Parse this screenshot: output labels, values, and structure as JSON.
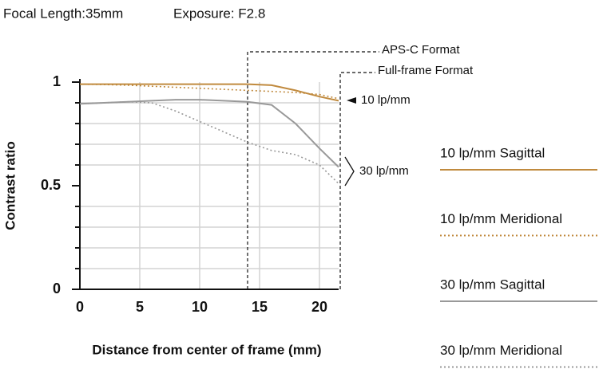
{
  "chart_data": {
    "type": "line",
    "title": "Focal Length:35mm",
    "subtitle": "Exposure: F2.8",
    "x_label": "Distance from center of frame (mm)",
    "y_label": "Contrast ratio",
    "x": [
      0,
      2,
      4,
      6,
      8,
      10,
      12,
      14,
      16,
      18,
      20,
      21.6
    ],
    "series": [
      {
        "name": "10 lp/mm Sagittal",
        "color": "#c08a3e",
        "dash": "solid",
        "values": [
          0.99,
          0.99,
          0.99,
          0.99,
          0.99,
          0.99,
          0.99,
          0.99,
          0.985,
          0.96,
          0.93,
          0.91
        ]
      },
      {
        "name": "10 lp/mm Meridional",
        "color": "#c08a3e",
        "dash": "dotted",
        "values": [
          0.99,
          0.988,
          0.985,
          0.98,
          0.975,
          0.97,
          0.965,
          0.96,
          0.955,
          0.95,
          0.94,
          0.92
        ]
      },
      {
        "name": "30 lp/mm Sagittal",
        "color": "#999999",
        "dash": "solid",
        "values": [
          0.895,
          0.9,
          0.905,
          0.91,
          0.915,
          0.915,
          0.91,
          0.905,
          0.89,
          0.8,
          0.68,
          0.59
        ]
      },
      {
        "name": "30 lp/mm Meridional",
        "color": "#999999",
        "dash": "dotted",
        "values": [
          0.895,
          0.9,
          0.905,
          0.9,
          0.86,
          0.81,
          0.76,
          0.71,
          0.67,
          0.65,
          0.6,
          0.51
        ]
      }
    ],
    "xlim": [
      0,
      21.6
    ],
    "ylim": [
      0,
      1
    ],
    "xticks": [
      0,
      5,
      10,
      15,
      20
    ],
    "yticks": [
      0,
      0.5,
      1
    ],
    "minor_yticks": [
      0.1,
      0.2,
      0.3,
      0.4,
      0.6,
      0.7,
      0.8,
      0.9
    ],
    "grid": true,
    "legend": "right",
    "format_lines": [
      {
        "text": "APS-C Format",
        "x": 14
      },
      {
        "text": "Full-frame Format",
        "x": 21.6
      }
    ],
    "line_labels": [
      "10 lp/mm",
      "30 lp/mm"
    ]
  }
}
